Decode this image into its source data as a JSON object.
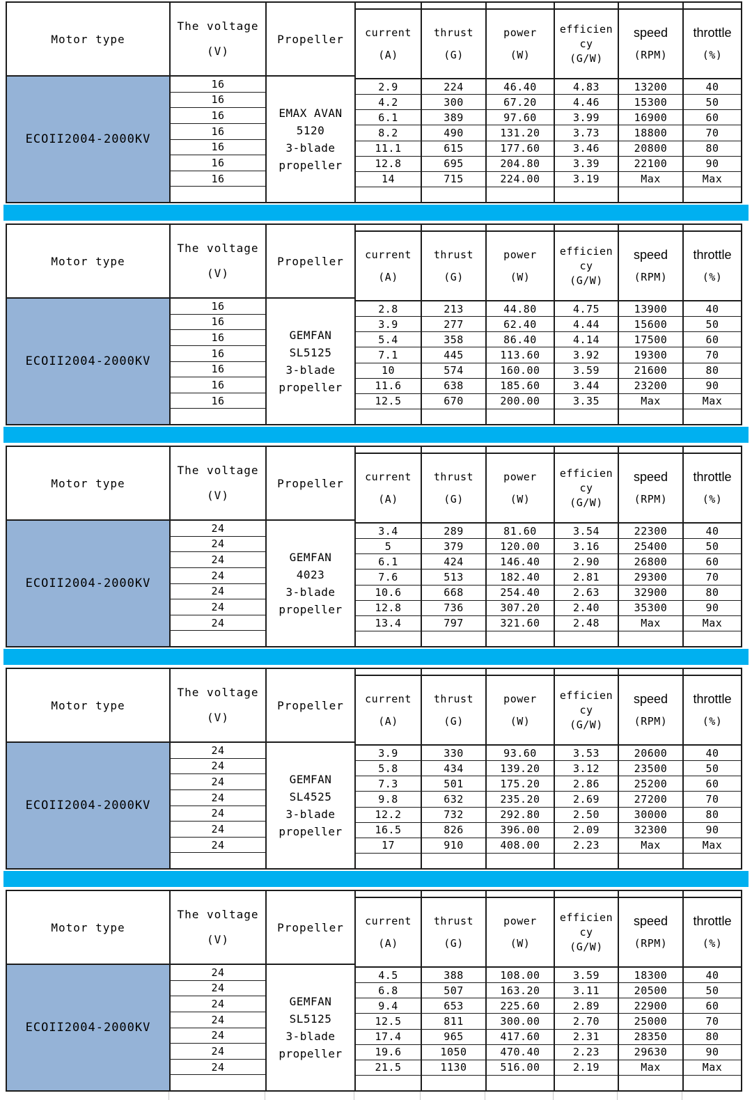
{
  "colors": {
    "separator_bar": "#00b0f0",
    "motor_cell_bg": "#95b3d7",
    "border": "#1c1c1c",
    "faint_grid": "#c8c8c8"
  },
  "labels": {
    "motor_type": "Motor type",
    "voltage_lines": [
      "The voltage",
      "(V)"
    ],
    "propeller": "Propeller",
    "current_lines": [
      "current",
      "(A)"
    ],
    "thrust_lines": [
      "thrust",
      "(G)"
    ],
    "power_lines": [
      "power",
      "(W)"
    ],
    "efficiency_lines": [
      "efficien",
      "cy",
      "(G/W)"
    ],
    "speed_lines": [
      "speed",
      "(RPM)"
    ],
    "throttle_lines": [
      "throttle",
      "(%)"
    ]
  },
  "tables": [
    {
      "motor": "ECOII2004-2000KV",
      "voltage": "16",
      "propeller_lines": [
        "EMAX AVAN",
        "5120",
        "3-blade",
        "propeller"
      ],
      "rows": [
        {
          "current": "2.9",
          "thrust": "224",
          "power": "46.40",
          "efficiency": "4.83",
          "speed": "13200",
          "throttle": "40"
        },
        {
          "current": "4.2",
          "thrust": "300",
          "power": "67.20",
          "efficiency": "4.46",
          "speed": "15300",
          "throttle": "50"
        },
        {
          "current": "6.1",
          "thrust": "389",
          "power": "97.60",
          "efficiency": "3.99",
          "speed": "16900",
          "throttle": "60"
        },
        {
          "current": "8.2",
          "thrust": "490",
          "power": "131.20",
          "efficiency": "3.73",
          "speed": "18800",
          "throttle": "70"
        },
        {
          "current": "11.1",
          "thrust": "615",
          "power": "177.60",
          "efficiency": "3.46",
          "speed": "20800",
          "throttle": "80"
        },
        {
          "current": "12.8",
          "thrust": "695",
          "power": "204.80",
          "efficiency": "3.39",
          "speed": "22100",
          "throttle": "90"
        },
        {
          "current": "14",
          "thrust": "715",
          "power": "224.00",
          "efficiency": "3.19",
          "speed": "Max",
          "throttle": "Max"
        }
      ]
    },
    {
      "motor": "ECOII2004-2000KV",
      "voltage": "16",
      "propeller_lines": [
        "GEMFAN",
        "SL5125",
        "3-blade",
        "propeller"
      ],
      "rows": [
        {
          "current": "2.8",
          "thrust": "213",
          "power": "44.80",
          "efficiency": "4.75",
          "speed": "13900",
          "throttle": "40"
        },
        {
          "current": "3.9",
          "thrust": "277",
          "power": "62.40",
          "efficiency": "4.44",
          "speed": "15600",
          "throttle": "50"
        },
        {
          "current": "5.4",
          "thrust": "358",
          "power": "86.40",
          "efficiency": "4.14",
          "speed": "17500",
          "throttle": "60"
        },
        {
          "current": "7.1",
          "thrust": "445",
          "power": "113.60",
          "efficiency": "3.92",
          "speed": "19300",
          "throttle": "70"
        },
        {
          "current": "10",
          "thrust": "574",
          "power": "160.00",
          "efficiency": "3.59",
          "speed": "21600",
          "throttle": "80"
        },
        {
          "current": "11.6",
          "thrust": "638",
          "power": "185.60",
          "efficiency": "3.44",
          "speed": "23200",
          "throttle": "90"
        },
        {
          "current": "12.5",
          "thrust": "670",
          "power": "200.00",
          "efficiency": "3.35",
          "speed": "Max",
          "throttle": "Max"
        }
      ]
    },
    {
      "motor": "ECOII2004-2000KV",
      "voltage": "24",
      "propeller_lines": [
        "GEMFAN",
        "4023",
        "3-blade",
        "propeller"
      ],
      "rows": [
        {
          "current": "3.4",
          "thrust": "289",
          "power": "81.60",
          "efficiency": "3.54",
          "speed": "22300",
          "throttle": "40"
        },
        {
          "current": "5",
          "thrust": "379",
          "power": "120.00",
          "efficiency": "3.16",
          "speed": "25400",
          "throttle": "50"
        },
        {
          "current": "6.1",
          "thrust": "424",
          "power": "146.40",
          "efficiency": "2.90",
          "speed": "26800",
          "throttle": "60"
        },
        {
          "current": "7.6",
          "thrust": "513",
          "power": "182.40",
          "efficiency": "2.81",
          "speed": "29300",
          "throttle": "70"
        },
        {
          "current": "10.6",
          "thrust": "668",
          "power": "254.40",
          "efficiency": "2.63",
          "speed": "32900",
          "throttle": "80"
        },
        {
          "current": "12.8",
          "thrust": "736",
          "power": "307.20",
          "efficiency": "2.40",
          "speed": "35300",
          "throttle": "90"
        },
        {
          "current": "13.4",
          "thrust": "797",
          "power": "321.60",
          "efficiency": "2.48",
          "speed": "Max",
          "throttle": "Max"
        }
      ]
    },
    {
      "motor": "ECOII2004-2000KV",
      "voltage": "24",
      "propeller_lines": [
        "GEMFAN",
        "SL4525",
        "3-blade",
        "propeller"
      ],
      "rows": [
        {
          "current": "3.9",
          "thrust": "330",
          "power": "93.60",
          "efficiency": "3.53",
          "speed": "20600",
          "throttle": "40"
        },
        {
          "current": "5.8",
          "thrust": "434",
          "power": "139.20",
          "efficiency": "3.12",
          "speed": "23500",
          "throttle": "50"
        },
        {
          "current": "7.3",
          "thrust": "501",
          "power": "175.20",
          "efficiency": "2.86",
          "speed": "25200",
          "throttle": "60"
        },
        {
          "current": "9.8",
          "thrust": "632",
          "power": "235.20",
          "efficiency": "2.69",
          "speed": "27200",
          "throttle": "70"
        },
        {
          "current": "12.2",
          "thrust": "732",
          "power": "292.80",
          "efficiency": "2.50",
          "speed": "30000",
          "throttle": "80"
        },
        {
          "current": "16.5",
          "thrust": "826",
          "power": "396.00",
          "efficiency": "2.09",
          "speed": "32300",
          "throttle": "90"
        },
        {
          "current": "17",
          "thrust": "910",
          "power": "408.00",
          "efficiency": "2.23",
          "speed": "Max",
          "throttle": "Max"
        }
      ]
    },
    {
      "motor": "ECOII2004-2000KV",
      "voltage": "24",
      "propeller_lines": [
        "GEMFAN",
        "SL5125",
        "3-blade",
        "propeller"
      ],
      "rows": [
        {
          "current": "4.5",
          "thrust": "388",
          "power": "108.00",
          "efficiency": "3.59",
          "speed": "18300",
          "throttle": "40"
        },
        {
          "current": "6.8",
          "thrust": "507",
          "power": "163.20",
          "efficiency": "3.11",
          "speed": "20500",
          "throttle": "50"
        },
        {
          "current": "9.4",
          "thrust": "653",
          "power": "225.60",
          "efficiency": "2.89",
          "speed": "22900",
          "throttle": "60"
        },
        {
          "current": "12.5",
          "thrust": "811",
          "power": "300.00",
          "efficiency": "2.70",
          "speed": "25000",
          "throttle": "70"
        },
        {
          "current": "17.4",
          "thrust": "965",
          "power": "417.60",
          "efficiency": "2.31",
          "speed": "28350",
          "throttle": "80"
        },
        {
          "current": "19.6",
          "thrust": "1050",
          "power": "470.40",
          "efficiency": "2.23",
          "speed": "29630",
          "throttle": "90"
        },
        {
          "current": "21.5",
          "thrust": "1130",
          "power": "516.00",
          "efficiency": "2.19",
          "speed": "Max",
          "throttle": "Max"
        }
      ]
    }
  ]
}
